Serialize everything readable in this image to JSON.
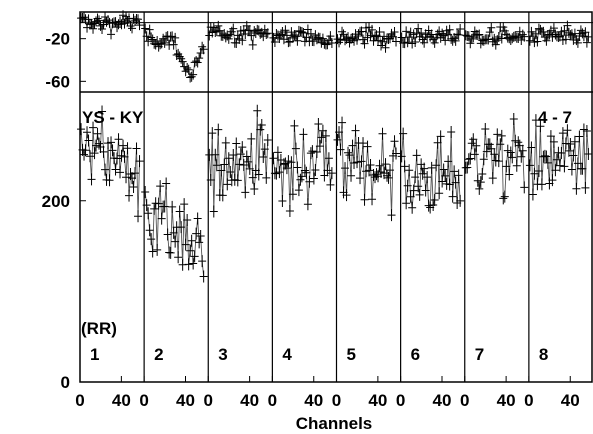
{
  "chart_data": {
    "type": "scatter",
    "baseline": "YS - KY",
    "time_range": "4 - 7",
    "polarization": "(RR)",
    "xlabel": "Channels",
    "x_ticks": [
      0,
      40
    ],
    "x_range": [
      0,
      62
    ],
    "top_panel": {
      "ylim": [
        -70,
        5
      ],
      "y_ticks": [
        -20,
        -60
      ],
      "reference_line": -5
    },
    "bottom_panel": {
      "ylim": [
        0,
        320
      ],
      "y_ticks": [
        0,
        200
      ]
    },
    "panels": [
      {
        "label": "1",
        "phase_mean": -5,
        "phase_dip": 0,
        "amp_mean": 245,
        "amp_slope": -40
      },
      {
        "label": "2",
        "phase_mean": -20,
        "phase_dip": -35,
        "amp_mean": 165,
        "amp_slope": -60
      },
      {
        "label": "3",
        "phase_mean": -15,
        "phase_dip": 0,
        "amp_mean": 245,
        "amp_slope": 10
      },
      {
        "label": "4",
        "phase_mean": -18,
        "phase_dip": 0,
        "amp_mean": 240,
        "amp_slope": 15
      },
      {
        "label": "5",
        "phase_mean": -18,
        "phase_dip": 0,
        "amp_mean": 235,
        "amp_slope": 0
      },
      {
        "label": "6",
        "phase_mean": -18,
        "phase_dip": 0,
        "amp_mean": 225,
        "amp_slope": 10
      },
      {
        "label": "7",
        "phase_mean": -18,
        "phase_dip": 0,
        "amp_mean": 245,
        "amp_slope": 0
      },
      {
        "label": "8",
        "phase_mean": -18,
        "phase_dip": 0,
        "amp_mean": 245,
        "amp_slope": 0
      }
    ]
  }
}
